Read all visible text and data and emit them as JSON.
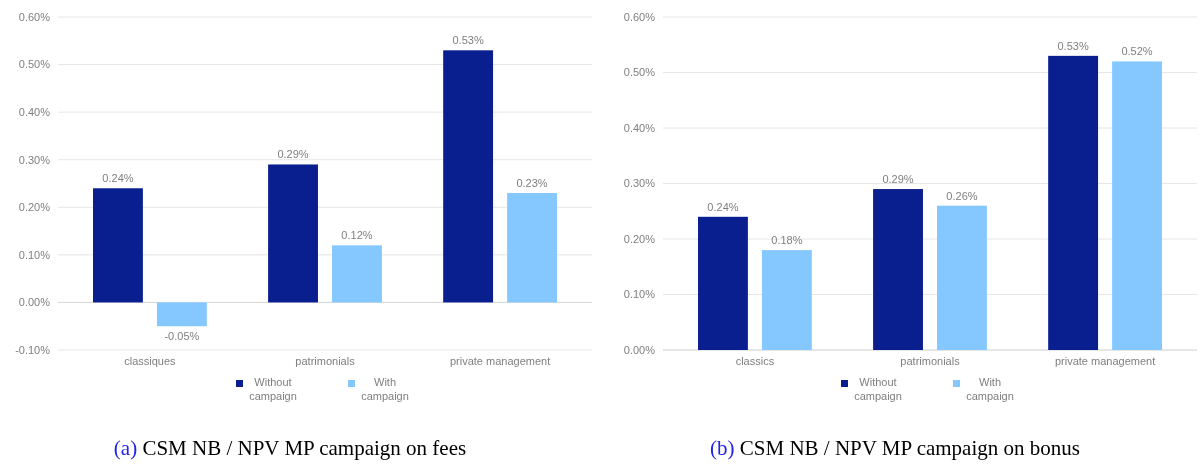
{
  "chart_data": [
    {
      "type": "bar",
      "title": "(a) CSM NB / NPV MP campaign on fees",
      "categories": [
        "classiques",
        "patrimonials",
        "private management"
      ],
      "series": [
        {
          "name": "Without campaign",
          "color": "#0a1f8f",
          "values": [
            0.24,
            0.29,
            0.53
          ],
          "value_labels": [
            "0.24%",
            "0.29%",
            "0.53%"
          ]
        },
        {
          "name": "With campaign",
          "color": "#85c8ff",
          "values": [
            -0.05,
            0.12,
            0.23
          ],
          "value_labels": [
            "-0.05%",
            "0.12%",
            "0.23%"
          ]
        }
      ],
      "ylim": [
        -0.1,
        0.6
      ],
      "yticks": [
        {
          "value": -0.1,
          "label": "-0.10%"
        },
        {
          "value": 0,
          "label": "0.00%"
        },
        {
          "value": 0.1,
          "label": "0.10%"
        },
        {
          "value": 0.2,
          "label": "0.20%"
        },
        {
          "value": 0.3,
          "label": "0.30%"
        },
        {
          "value": 0.4,
          "label": "0.40%"
        },
        {
          "value": 0.5,
          "label": "0.50%"
        },
        {
          "value": 0.6,
          "label": "0.60%"
        }
      ],
      "grid": "y",
      "legend": "bottom"
    },
    {
      "type": "bar",
      "title": "(b) CSM NB / NPV MP campaign on bonus",
      "categories": [
        "classics",
        "patrimonials",
        "private management"
      ],
      "series": [
        {
          "name": "Without campaign",
          "color": "#0a1f8f",
          "values": [
            0.24,
            0.29,
            0.53
          ],
          "value_labels": [
            "0.24%",
            "0.29%",
            "0.53%"
          ]
        },
        {
          "name": "With campaign",
          "color": "#85c8ff",
          "values": [
            0.18,
            0.26,
            0.52
          ],
          "value_labels": [
            "0.18%",
            "0.26%",
            "0.52%"
          ]
        }
      ],
      "ylim": [
        0,
        0.6
      ],
      "yticks": [
        {
          "value": 0,
          "label": "0.00%"
        },
        {
          "value": 0.1,
          "label": "0.10%"
        },
        {
          "value": 0.2,
          "label": "0.20%"
        },
        {
          "value": 0.3,
          "label": "0.30%"
        },
        {
          "value": 0.4,
          "label": "0.40%"
        },
        {
          "value": 0.5,
          "label": "0.50%"
        },
        {
          "value": 0.6,
          "label": "0.60%"
        }
      ],
      "grid": "y",
      "legend": "bottom"
    }
  ]
}
